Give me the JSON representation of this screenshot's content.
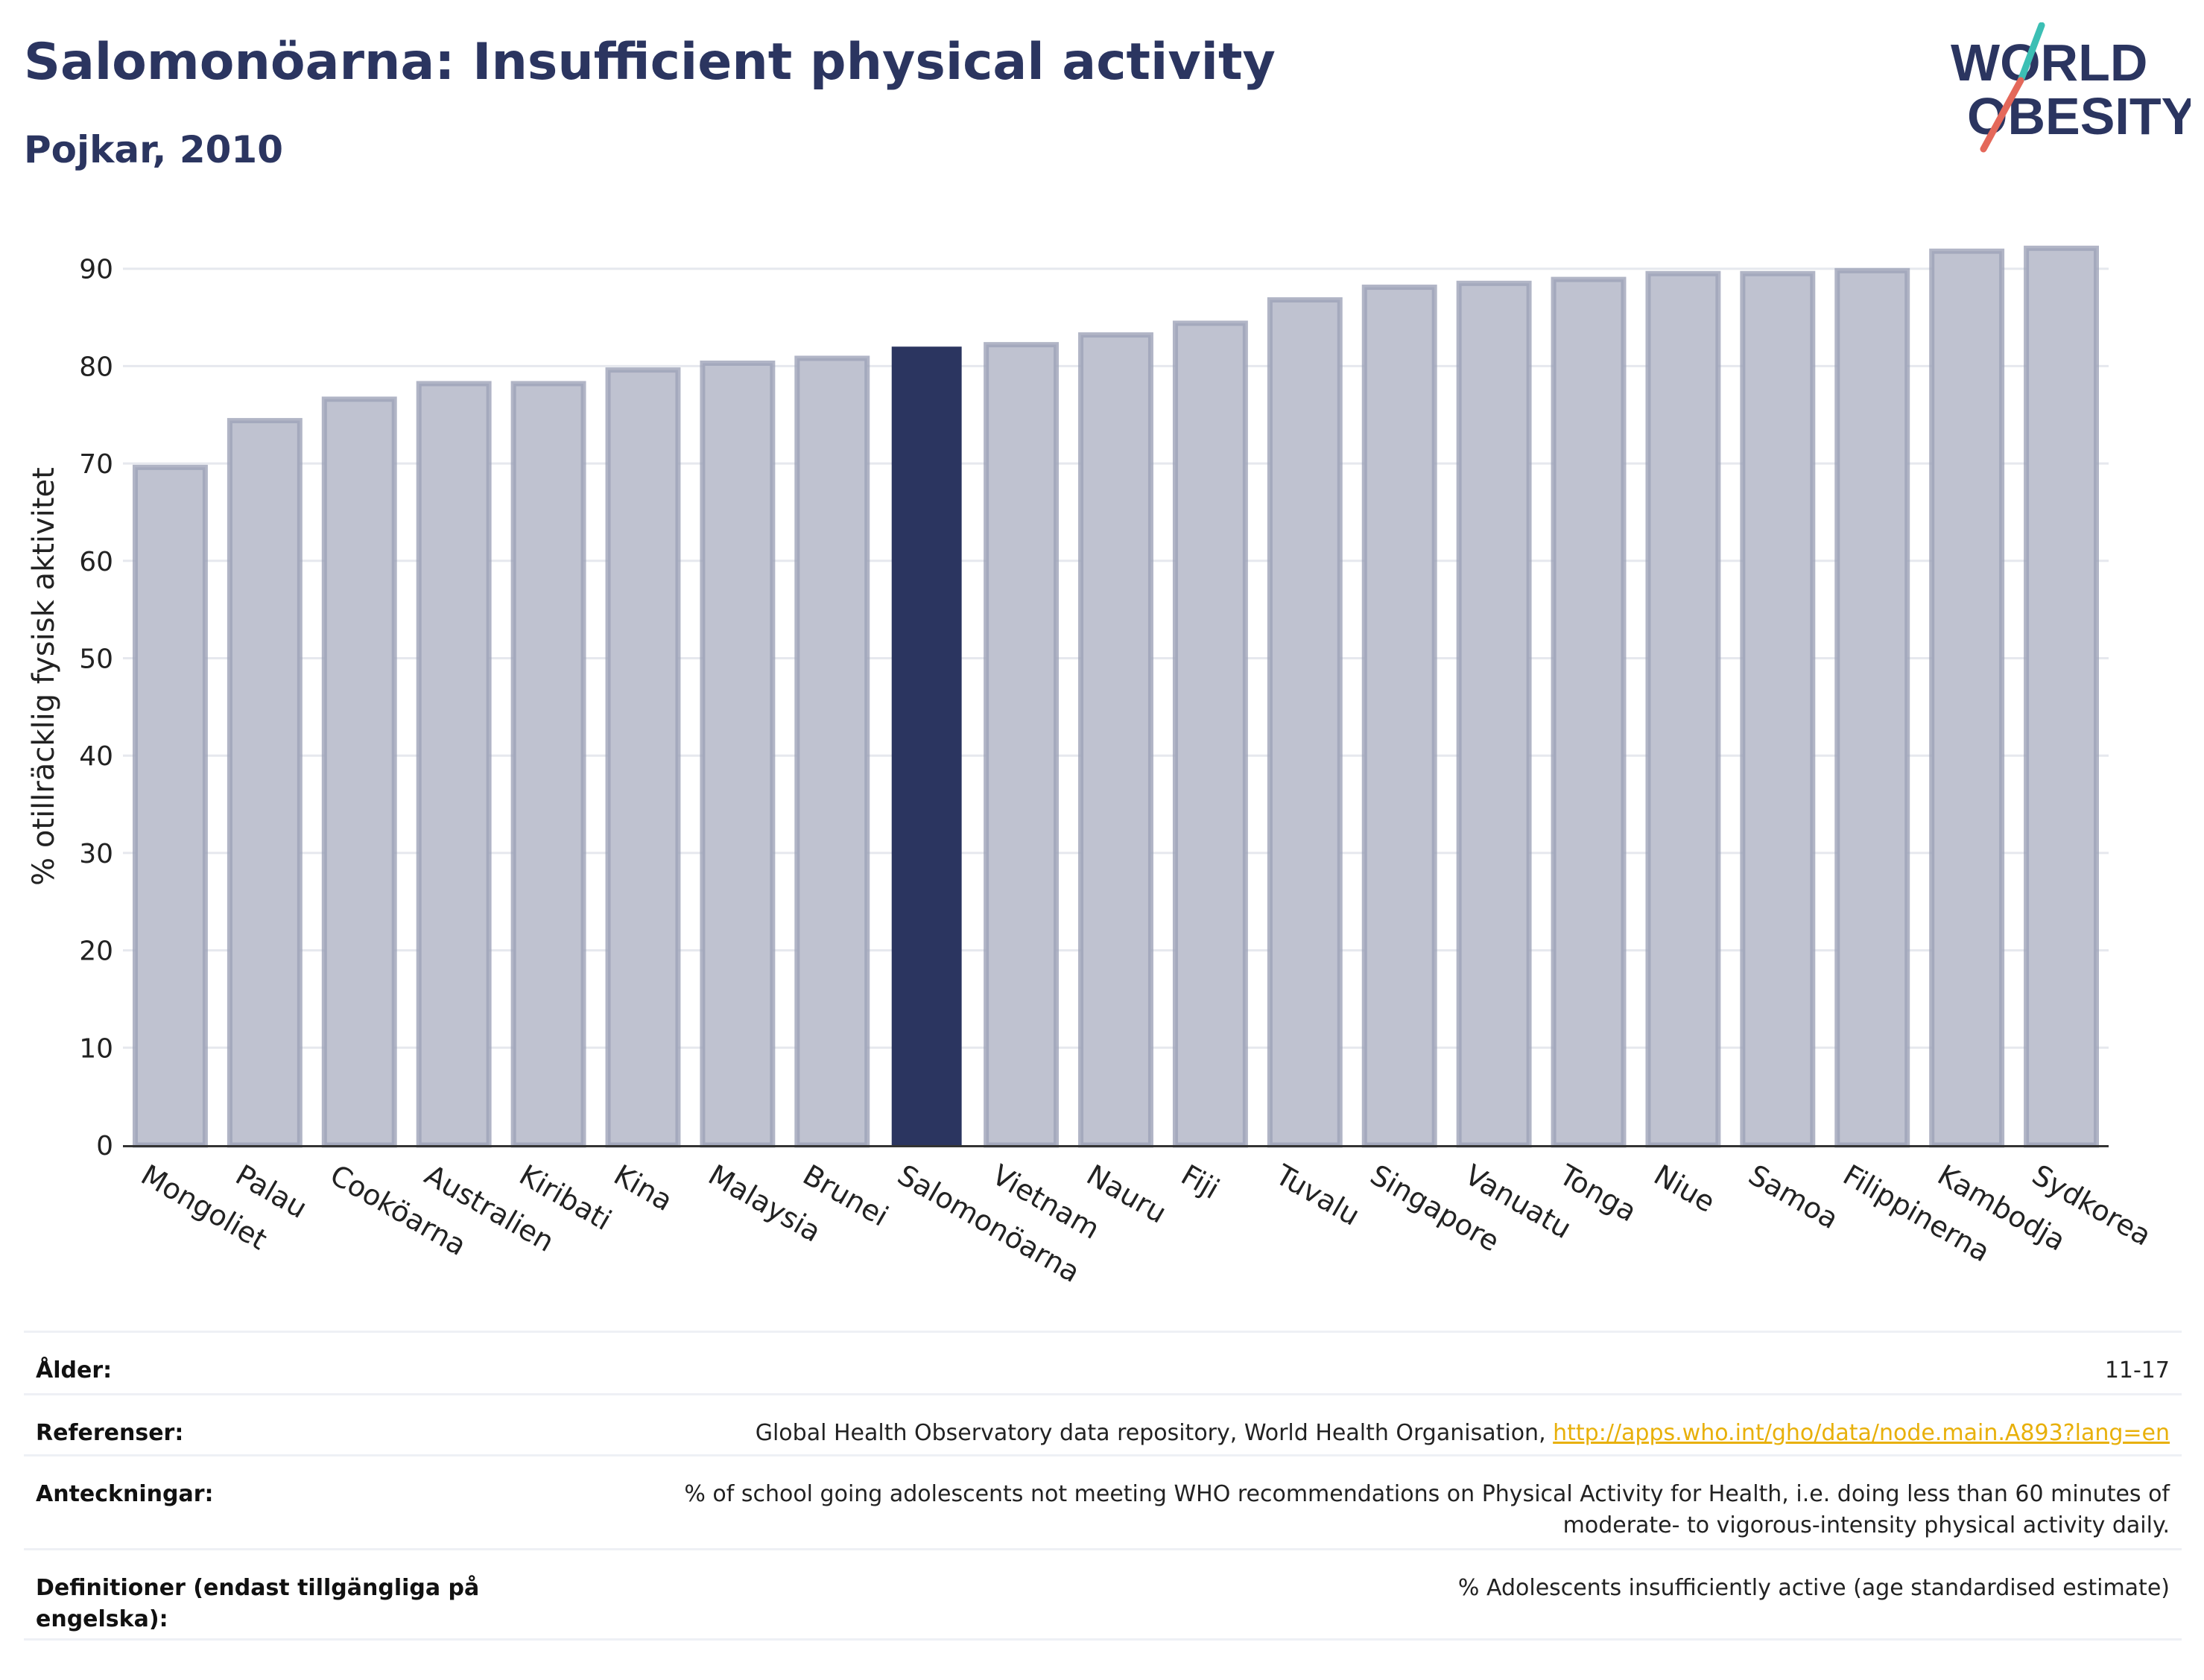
{
  "header": {
    "title": "Salomonöarna: Insufficient physical activity",
    "subtitle": "Pojkar, 2010"
  },
  "logo": {
    "line1": "WORLD",
    "line2": "OBESITY",
    "colors": {
      "text": "#2b3560",
      "slash_teal": "#3cbfb4",
      "slash_red": "#e4685a"
    }
  },
  "chart_data": {
    "type": "bar",
    "ylabel": "% otillräcklig fysisk aktivitet",
    "ylim": [
      0,
      95
    ],
    "yticks": [
      0,
      10,
      20,
      30,
      40,
      50,
      60,
      70,
      80,
      90
    ],
    "grid": true,
    "highlight": "Salomonöarna",
    "colors": {
      "bar": "#bfc2d0",
      "bar_edge": "#9ea3b8",
      "highlight": "#2b3560",
      "grid": "#e6e8ee",
      "axis": "#333333"
    },
    "categories": [
      "Mongoliet",
      "Palau",
      "Cooköarna",
      "Australien",
      "Kiribati",
      "Kina",
      "Malaysia",
      "Brunei",
      "Salomonöarna",
      "Vietnam",
      "Nauru",
      "Fiji",
      "Tuvalu",
      "Singapore",
      "Vanuatu",
      "Tonga",
      "Niue",
      "Samoa",
      "Filippinerna",
      "Kambodja",
      "Sydkorea"
    ],
    "values": [
      69.6,
      74.4,
      76.6,
      78.2,
      78.2,
      79.6,
      80.3,
      80.8,
      82.0,
      82.2,
      83.2,
      84.4,
      86.8,
      88.1,
      88.5,
      88.9,
      89.5,
      89.5,
      89.8,
      91.8,
      92.1
    ]
  },
  "meta": [
    {
      "label": "Ålder:",
      "value": "11-17"
    },
    {
      "label": "Referenser:",
      "value": "Global Health Observatory data repository, World Health Organisation, ",
      "link": "http://apps.who.int/gho/data/node.main.A893?lang=en"
    },
    {
      "label": "Anteckningar:",
      "value": "% of school going adolescents not meeting WHO recommendations on Physical Activity for Health, i.e. doing less than 60 minutes of moderate- to vigorous-intensity physical activity daily."
    },
    {
      "label": "Definitioner (endast tillgängliga på engelska):",
      "value": "% Adolescents insufficiently active (age standardised estimate)"
    }
  ]
}
